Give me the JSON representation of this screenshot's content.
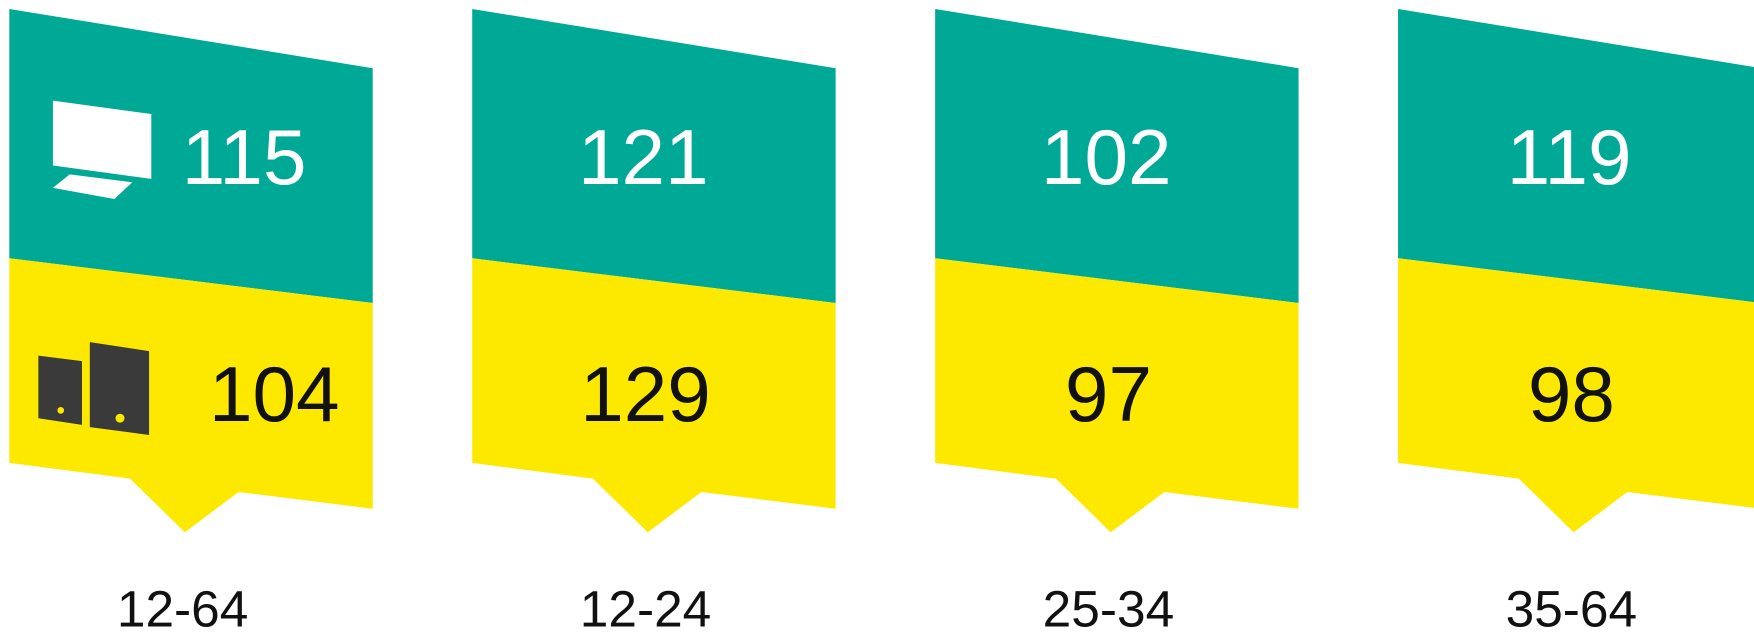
{
  "panels": [
    {
      "label": "12-64",
      "top": 115,
      "bottom": 104
    },
    {
      "label": "12-24",
      "top": 121,
      "bottom": 129
    },
    {
      "label": "25-34",
      "top": 102,
      "bottom": 97
    },
    {
      "label": "35-64",
      "top": 119,
      "bottom": 98
    }
  ]
}
